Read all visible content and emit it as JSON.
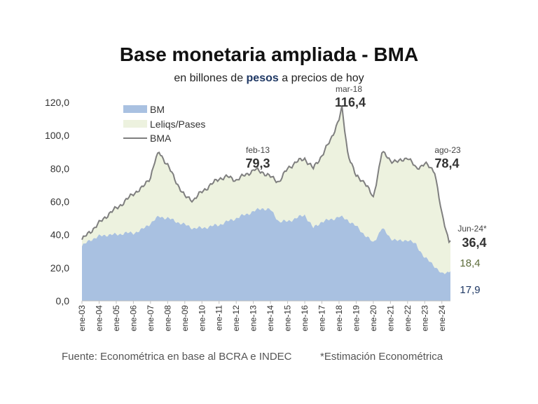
{
  "title": "Base monetaria ampliada - BMA",
  "subtitle": {
    "before": "en billones de ",
    "highlight": "pesos",
    "after": " a precios de hoy"
  },
  "source": "Fuente: Econométrica en base al BCRA e INDEC",
  "note": "*Estimación Econométrica",
  "colors": {
    "bm": "#a9c1e1",
    "leliqs": "#edf2df",
    "bma": "#7f7f7f",
    "leliqs_label": "#5c6b3a",
    "bm_label": "#1f3864",
    "highlight": "#1f3864"
  },
  "chart_data": {
    "type": "area",
    "y_ticks": [
      "0,0",
      "20,0",
      "40,0",
      "60,0",
      "80,0",
      "100,0",
      "120,0"
    ],
    "ylim": [
      0,
      120
    ],
    "x_ticks": [
      "ene-03",
      "ene-04",
      "ene-05",
      "ene-06",
      "ene-07",
      "ene-08",
      "ene-09",
      "ene-10",
      "ene-11",
      "ene-12",
      "ene-13",
      "ene-14",
      "ene-15",
      "ene-16",
      "ene-17",
      "ene-18",
      "ene-19",
      "ene-20",
      "ene-21",
      "ene-22",
      "ene-23",
      "ene-24"
    ],
    "legend": [
      "BM",
      "Leliqs/Pases",
      "BMA"
    ],
    "legend_position": "top-left",
    "series": [
      {
        "name": "BMA",
        "x": [
          "2003-01",
          "2003-07",
          "2004-01",
          "2004-07",
          "2005-01",
          "2005-07",
          "2006-01",
          "2006-07",
          "2007-01",
          "2007-04",
          "2007-07",
          "2008-01",
          "2008-07",
          "2009-01",
          "2009-07",
          "2010-01",
          "2010-07",
          "2011-01",
          "2011-07",
          "2012-01",
          "2012-07",
          "2013-02",
          "2013-07",
          "2014-01",
          "2014-07",
          "2015-01",
          "2015-07",
          "2016-01",
          "2016-07",
          "2017-01",
          "2017-07",
          "2018-01",
          "2018-03",
          "2018-07",
          "2019-01",
          "2019-07",
          "2020-01",
          "2020-07",
          "2021-01",
          "2021-07",
          "2022-01",
          "2022-07",
          "2023-01",
          "2023-08",
          "2024-01",
          "2024-06"
        ],
        "values": [
          37,
          42,
          47,
          52,
          56,
          60,
          65,
          68,
          75,
          84,
          90,
          82,
          72,
          63,
          61,
          66,
          70,
          74,
          75,
          73,
          76,
          79.3,
          78,
          75,
          72,
          80,
          84,
          86,
          80,
          88,
          97,
          110,
          116.4,
          90,
          75,
          72,
          62,
          90,
          85,
          84,
          87,
          80,
          83,
          78.4,
          52,
          36.4
        ]
      },
      {
        "name": "BM",
        "x": [
          "2003-01",
          "2003-07",
          "2004-01",
          "2004-07",
          "2005-01",
          "2005-07",
          "2006-01",
          "2006-07",
          "2007-01",
          "2007-07",
          "2008-01",
          "2008-07",
          "2009-01",
          "2009-07",
          "2010-01",
          "2010-07",
          "2011-01",
          "2011-07",
          "2012-01",
          "2012-07",
          "2013-01",
          "2013-07",
          "2014-01",
          "2014-07",
          "2015-01",
          "2015-07",
          "2016-01",
          "2016-07",
          "2017-01",
          "2017-07",
          "2018-01",
          "2018-07",
          "2019-01",
          "2019-07",
          "2020-01",
          "2020-07",
          "2021-01",
          "2021-07",
          "2022-01",
          "2022-07",
          "2023-01",
          "2023-07",
          "2024-01",
          "2024-06"
        ],
        "values": [
          33,
          37,
          39,
          40,
          40,
          41,
          41,
          43,
          47,
          51,
          50,
          48,
          46,
          44,
          44,
          45,
          46,
          48,
          50,
          52,
          54,
          56,
          55,
          48,
          48,
          50,
          52,
          44,
          48,
          49,
          51,
          49,
          45,
          40,
          35,
          44,
          38,
          36,
          37,
          34,
          26,
          22,
          16,
          17.9
        ]
      },
      {
        "name": "Leliqs/Pases",
        "x": [
          "2024-06"
        ],
        "values": [
          18.4
        ]
      }
    ],
    "annotations": [
      {
        "label": "feb-13",
        "value": "79,3"
      },
      {
        "label": "mar-18",
        "value": "116,4"
      },
      {
        "label": "ago-23",
        "value": "78,4"
      },
      {
        "label": "Jun-24*",
        "value": "36,4"
      },
      {
        "label": "",
        "value": "18,4"
      },
      {
        "label": "",
        "value": "17,9"
      }
    ]
  }
}
